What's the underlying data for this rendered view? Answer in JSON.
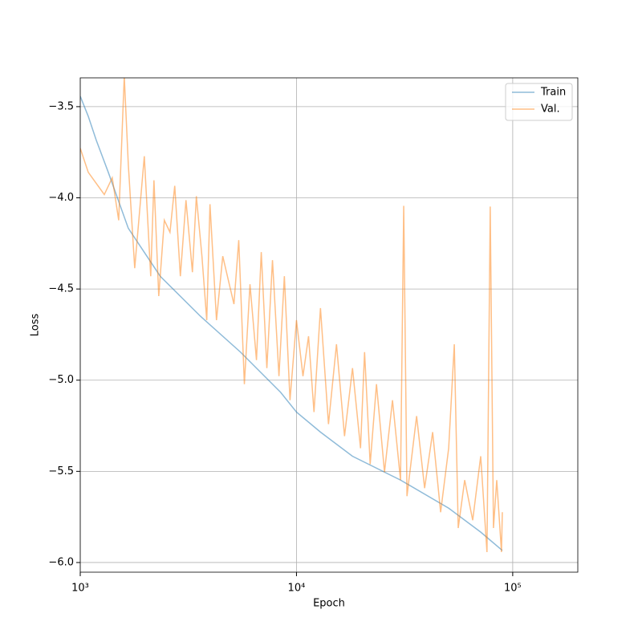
{
  "chart_data": {
    "type": "line",
    "xlabel": "Epoch",
    "ylabel": "Loss",
    "xscale": "log",
    "grid": true,
    "legend": "upper right",
    "xlim": [
      1000,
      200000
    ],
    "xticks": [
      {
        "value": 1000,
        "label": "10³"
      },
      {
        "value": 10000,
        "label": "10⁴"
      },
      {
        "value": 100000,
        "label": "10⁵"
      }
    ],
    "ylim": [
      -6.053,
      -3.342
    ],
    "yticks": [
      {
        "value": -3.5,
        "label": "−3.5"
      },
      {
        "value": -4.0,
        "label": "−4.0"
      },
      {
        "value": -4.5,
        "label": "−4.5"
      },
      {
        "value": -5.0,
        "label": "−5.0"
      },
      {
        "value": -5.5,
        "label": "−5.5"
      },
      {
        "value": -6.0,
        "label": "−6.0"
      }
    ],
    "series": [
      {
        "name": "Train",
        "color": "#1f77b4",
        "opacity": 0.5,
        "x": [
          1000,
          1089,
          1186,
          1348,
          1668,
          2344,
          3594,
          5508,
          8440,
          10000,
          12920,
          18150,
          30290,
          50570,
          71080,
          89540
        ],
        "values": [
          -3.443,
          -3.553,
          -3.684,
          -3.86,
          -4.167,
          -4.43,
          -4.649,
          -4.846,
          -5.066,
          -5.175,
          -5.285,
          -5.417,
          -5.548,
          -5.702,
          -5.833,
          -5.934
        ]
      },
      {
        "name": "Val.",
        "color": "#ff7f0e",
        "opacity": 0.5,
        "x": [
          1000,
          1089,
          1292,
          1406,
          1506,
          1598,
          1668,
          1786,
          1978,
          2118,
          2192,
          2307,
          2448,
          2600,
          2735,
          2904,
          3083,
          3302,
          3443,
          3654,
          3846,
          3981,
          4266,
          4561,
          4841,
          5138,
          5408,
          5741,
          6095,
          6531,
          6873,
          7295,
          7745,
          8298,
          8790,
          9333,
          10000,
          10715,
          11370,
          12050,
          12910,
          14060,
          15310,
          16680,
          18160,
          19780,
          20650,
          21920,
          23440,
          25530,
          27800,
          30280,
          31330,
          32440,
          35940,
          39140,
          42630,
          46420,
          50570,
          53690,
          55980,
          59970,
          65310,
          71120,
          76030,
          78710,
          81470,
          84370,
          88720,
          89540
        ],
        "values": [
          -3.728,
          -3.86,
          -3.982,
          -3.89,
          -4.123,
          -3.333,
          -3.816,
          -4.386,
          -3.772,
          -4.43,
          -3.904,
          -4.539,
          -4.123,
          -4.189,
          -3.934,
          -4.43,
          -4.013,
          -4.408,
          -3.991,
          -4.32,
          -4.671,
          -4.035,
          -4.671,
          -4.32,
          -4.452,
          -4.583,
          -4.232,
          -5.022,
          -4.474,
          -4.89,
          -4.298,
          -4.934,
          -4.342,
          -4.978,
          -4.43,
          -5.11,
          -4.671,
          -4.978,
          -4.759,
          -5.175,
          -4.605,
          -5.241,
          -4.803,
          -5.307,
          -4.934,
          -5.373,
          -4.846,
          -5.461,
          -5.022,
          -5.504,
          -5.11,
          -5.548,
          -4.044,
          -5.636,
          -5.197,
          -5.592,
          -5.285,
          -5.724,
          -5.373,
          -4.803,
          -5.811,
          -5.548,
          -5.768,
          -5.417,
          -5.943,
          -4.048,
          -5.811,
          -5.548,
          -5.943,
          -5.724
        ]
      }
    ]
  }
}
